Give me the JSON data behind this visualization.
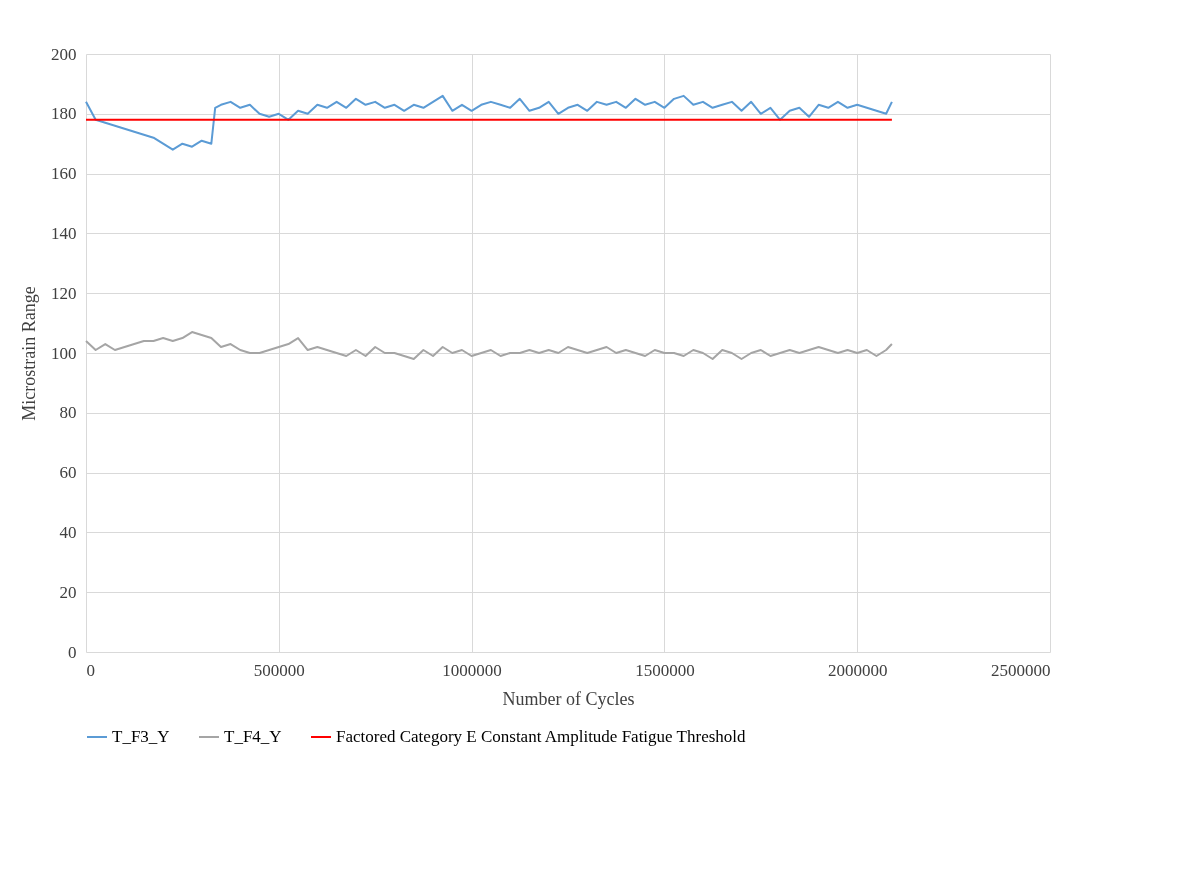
{
  "chart_data": {
    "type": "line",
    "xlabel": "Number of Cycles",
    "ylabel": "Microstrain Range",
    "xlim": [
      0,
      2500000
    ],
    "xticks": [
      0,
      500000,
      1000000,
      1500000,
      2000000,
      2500000
    ],
    "ylim": [
      0,
      200
    ],
    "yticks": [
      0,
      20,
      40,
      60,
      80,
      100,
      120,
      140,
      160,
      180,
      200
    ],
    "grid": true,
    "legend": "bottom",
    "line_style": "solid",
    "marker": "none",
    "series": [
      {
        "name": "T_F3_Y",
        "color": "#5b9bd5",
        "x": [
          0,
          25000,
          50000,
          75000,
          100000,
          125000,
          150000,
          175000,
          200000,
          225000,
          250000,
          275000,
          300000,
          325000,
          335000,
          350000,
          375000,
          400000,
          425000,
          450000,
          475000,
          500000,
          525000,
          550000,
          575000,
          600000,
          625000,
          650000,
          675000,
          700000,
          725000,
          750000,
          775000,
          800000,
          825000,
          850000,
          875000,
          900000,
          925000,
          950000,
          975000,
          1000000,
          1025000,
          1050000,
          1075000,
          1100000,
          1125000,
          1150000,
          1175000,
          1200000,
          1225000,
          1250000,
          1275000,
          1300000,
          1325000,
          1350000,
          1375000,
          1400000,
          1425000,
          1450000,
          1475000,
          1500000,
          1525000,
          1550000,
          1575000,
          1600000,
          1625000,
          1650000,
          1675000,
          1700000,
          1725000,
          1750000,
          1775000,
          1800000,
          1825000,
          1850000,
          1875000,
          1900000,
          1925000,
          1950000,
          1975000,
          2000000,
          2025000,
          2050000,
          2075000,
          2090000
        ],
        "values": [
          184,
          178,
          177,
          176,
          175,
          174,
          173,
          172,
          170,
          168,
          170,
          169,
          171,
          170,
          182,
          183,
          184,
          182,
          183,
          180,
          179,
          180,
          178,
          181,
          180,
          183,
          182,
          184,
          182,
          185,
          183,
          184,
          182,
          183,
          181,
          183,
          182,
          184,
          186,
          181,
          183,
          181,
          183,
          184,
          183,
          182,
          185,
          181,
          182,
          184,
          180,
          182,
          183,
          181,
          184,
          183,
          184,
          182,
          185,
          183,
          184,
          182,
          185,
          186,
          183,
          184,
          182,
          183,
          184,
          181,
          184,
          180,
          182,
          178,
          181,
          182,
          179,
          183,
          182,
          184,
          182,
          183,
          182,
          181,
          180,
          184
        ]
      },
      {
        "name": "T_F4_Y",
        "color": "#a5a5a5",
        "x": [
          0,
          25000,
          50000,
          75000,
          100000,
          125000,
          150000,
          175000,
          200000,
          225000,
          250000,
          275000,
          300000,
          325000,
          350000,
          375000,
          400000,
          425000,
          450000,
          475000,
          500000,
          525000,
          550000,
          575000,
          600000,
          625000,
          650000,
          675000,
          700000,
          725000,
          750000,
          775000,
          800000,
          825000,
          850000,
          875000,
          900000,
          925000,
          950000,
          975000,
          1000000,
          1025000,
          1050000,
          1075000,
          1100000,
          1125000,
          1150000,
          1175000,
          1200000,
          1225000,
          1250000,
          1275000,
          1300000,
          1325000,
          1350000,
          1375000,
          1400000,
          1425000,
          1450000,
          1475000,
          1500000,
          1525000,
          1550000,
          1575000,
          1600000,
          1625000,
          1650000,
          1675000,
          1700000,
          1725000,
          1750000,
          1775000,
          1800000,
          1825000,
          1850000,
          1875000,
          1900000,
          1925000,
          1950000,
          1975000,
          2000000,
          2025000,
          2050000,
          2075000,
          2090000
        ],
        "values": [
          104,
          101,
          103,
          101,
          102,
          103,
          104,
          104,
          105,
          104,
          105,
          107,
          106,
          105,
          102,
          103,
          101,
          100,
          100,
          101,
          102,
          103,
          105,
          101,
          102,
          101,
          100,
          99,
          101,
          99,
          102,
          100,
          100,
          99,
          98,
          101,
          99,
          102,
          100,
          101,
          99,
          100,
          101,
          99,
          100,
          100,
          101,
          100,
          101,
          100,
          102,
          101,
          100,
          101,
          102,
          100,
          101,
          100,
          99,
          101,
          100,
          100,
          99,
          101,
          100,
          98,
          101,
          100,
          98,
          100,
          101,
          99,
          100,
          101,
          100,
          101,
          102,
          101,
          100,
          101,
          100,
          101,
          99,
          101,
          103
        ]
      },
      {
        "name": "Factored Category E Constant Amplitude Fatigue Threshold",
        "color": "#ff0000",
        "x": [
          0,
          2090000
        ],
        "values": [
          178,
          178
        ]
      }
    ]
  }
}
